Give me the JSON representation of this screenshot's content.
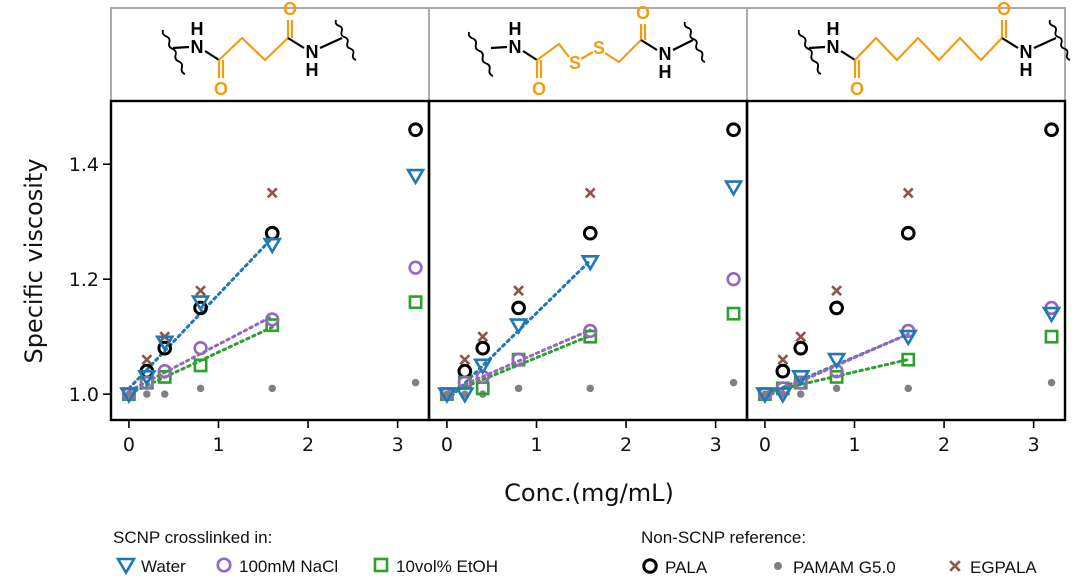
{
  "colors": {
    "water": "#1f77b4",
    "nacl": "#9467bd",
    "etoh": "#2ca02c",
    "pala": "#000000",
    "pamam": "#808080",
    "egpala": "#8c564b",
    "linker": "#f39c12",
    "header_border": "#aaaaaa"
  },
  "chart_data": {
    "type": "scatter",
    "xlabel": "Conc.(mg/mL)",
    "ylabel": "Specific viscosity",
    "xlim": [
      -0.2,
      3.35
    ],
    "ylim": [
      0.955,
      1.51
    ],
    "xticks": [
      0,
      1,
      2,
      3
    ],
    "yticks": [
      1.0,
      1.2,
      1.4
    ],
    "panels": [
      {
        "id": "succinyl",
        "linker_atoms": [
          "H",
          "N",
          "O",
          "O",
          "N",
          "H"
        ],
        "series": [
          {
            "name": "Water",
            "x": [
              0,
              0.2,
              0.4,
              0.8,
              1.6,
              3.2
            ],
            "y": [
              1.0,
              1.03,
              1.09,
              1.16,
              1.26,
              1.38
            ],
            "fit_to": 1.6
          },
          {
            "name": "100mM NaCl",
            "x": [
              0,
              0.2,
              0.4,
              0.8,
              1.6,
              3.2
            ],
            "y": [
              1.0,
              1.02,
              1.04,
              1.08,
              1.13,
              1.22
            ],
            "fit_to": 1.6
          },
          {
            "name": "10vol% EtOH",
            "x": [
              0,
              0.2,
              0.4,
              0.8,
              1.6,
              3.2
            ],
            "y": [
              1.0,
              1.02,
              1.03,
              1.05,
              1.12,
              1.16
            ],
            "fit_to": 1.6
          },
          {
            "name": "PALA",
            "x": [
              0.2,
              0.4,
              0.8,
              1.6,
              3.2
            ],
            "y": [
              1.04,
              1.08,
              1.15,
              1.28,
              1.46
            ]
          },
          {
            "name": "PAMAM G5.0",
            "x": [
              0,
              0.2,
              0.4,
              0.8,
              1.6,
              3.2
            ],
            "y": [
              1.0,
              1.0,
              1.0,
              1.01,
              1.01,
              1.02
            ]
          },
          {
            "name": "EGPALA",
            "x": [
              0.2,
              0.4,
              0.8,
              1.6
            ],
            "y": [
              1.06,
              1.1,
              1.18,
              1.35
            ]
          }
        ]
      },
      {
        "id": "disulfide",
        "linker_atoms": [
          "H",
          "N",
          "O",
          "S",
          "S",
          "O",
          "N",
          "H"
        ],
        "series": [
          {
            "name": "Water",
            "x": [
              0,
              0.2,
              0.4,
              0.8,
              1.6,
              3.2
            ],
            "y": [
              1.0,
              1.0,
              1.05,
              1.12,
              1.23,
              1.36
            ],
            "fit_to": 1.6
          },
          {
            "name": "100mM NaCl",
            "x": [
              0,
              0.2,
              0.4,
              0.8,
              1.6,
              3.2
            ],
            "y": [
              1.0,
              1.02,
              1.03,
              1.06,
              1.11,
              1.2
            ],
            "fit_to": 1.6
          },
          {
            "name": "10vol% EtOH",
            "x": [
              0,
              0.2,
              0.4,
              0.8,
              1.6,
              3.2
            ],
            "y": [
              1.0,
              1.02,
              1.01,
              1.06,
              1.1,
              1.14
            ],
            "fit_to": 1.6
          },
          {
            "name": "PALA",
            "x": [
              0.2,
              0.4,
              0.8,
              1.6,
              3.2
            ],
            "y": [
              1.04,
              1.08,
              1.15,
              1.28,
              1.46
            ]
          },
          {
            "name": "PAMAM G5.0",
            "x": [
              0,
              0.2,
              0.4,
              0.8,
              1.6,
              3.2
            ],
            "y": [
              1.0,
              1.0,
              1.0,
              1.01,
              1.01,
              1.02
            ]
          },
          {
            "name": "EGPALA",
            "x": [
              0.2,
              0.4,
              0.8,
              1.6
            ],
            "y": [
              1.06,
              1.1,
              1.18,
              1.35
            ]
          }
        ]
      },
      {
        "id": "suberoyl",
        "linker_atoms": [
          "H",
          "N",
          "O",
          "O",
          "N",
          "H"
        ],
        "series": [
          {
            "name": "Water",
            "x": [
              0,
              0.2,
              0.4,
              0.8,
              1.6,
              3.2
            ],
            "y": [
              1.0,
              1.0,
              1.03,
              1.06,
              1.1,
              1.14
            ],
            "fit_to": 1.6
          },
          {
            "name": "100mM NaCl",
            "x": [
              0,
              0.2,
              0.4,
              0.8,
              1.6,
              3.2
            ],
            "y": [
              1.0,
              1.01,
              1.02,
              1.04,
              1.11,
              1.15
            ],
            "fit_to": 1.6
          },
          {
            "name": "10vol% EtOH",
            "x": [
              0,
              0.2,
              0.4,
              0.8,
              1.6,
              3.2
            ],
            "y": [
              1.0,
              1.01,
              1.02,
              1.03,
              1.06,
              1.1
            ],
            "fit_to": 1.6
          },
          {
            "name": "PALA",
            "x": [
              0.2,
              0.4,
              0.8,
              1.6,
              3.2
            ],
            "y": [
              1.04,
              1.08,
              1.15,
              1.28,
              1.46
            ]
          },
          {
            "name": "PAMAM G5.0",
            "x": [
              0,
              0.2,
              0.4,
              0.8,
              1.6,
              3.2
            ],
            "y": [
              1.0,
              1.0,
              1.0,
              1.01,
              1.01,
              1.02
            ]
          },
          {
            "name": "EGPALA",
            "x": [
              0.2,
              0.4,
              0.8,
              1.6
            ],
            "y": [
              1.06,
              1.1,
              1.18,
              1.35
            ]
          }
        ]
      }
    ],
    "legend": {
      "group1_title": "SCNP crosslinked in:",
      "group2_title": "Non-SCNP reference:",
      "group1": [
        "Water",
        "100mM NaCl",
        "10vol% EtOH"
      ],
      "group2": [
        "PALA",
        "PAMAM G5.0",
        "EGPALA"
      ]
    }
  }
}
